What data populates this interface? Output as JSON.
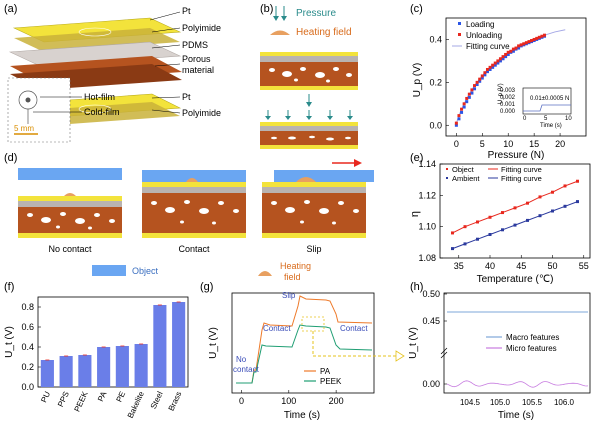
{
  "labels": {
    "a": "(a)",
    "b": "(b)",
    "c": "(c)",
    "d": "(d)",
    "e": "(e)",
    "f": "(f)",
    "g": "(g)",
    "h": "(h)"
  },
  "panel_a": {
    "layers": [
      "Pt",
      "Polyimide",
      "PDMS",
      "Porous material",
      "Pt",
      "Polyimide"
    ],
    "hot_film": "Hot-film",
    "cold_film": "Cold-film",
    "scale": "5 mm"
  },
  "panel_b": {
    "pressure": "Pressure",
    "heating": "Heating field"
  },
  "panel_d": {
    "states": [
      "No contact",
      "Contact",
      "Slip"
    ],
    "legend_object": "Object",
    "legend_heating": "Heating field",
    "colors": {
      "object": "#6aa6f2",
      "brown": "#b5531f",
      "yellow": "#f3e33b",
      "red": "#e8281e"
    }
  },
  "chart_data": [
    {
      "id": "c",
      "type": "scatter",
      "xlabel": "Pressure (N)",
      "ylabel": "U_p (V)",
      "xlim": [
        -2,
        25
      ],
      "ylim": [
        -0.05,
        0.5
      ],
      "xticks": [
        0,
        5,
        10,
        15,
        20
      ],
      "yticks": [
        0.0,
        0.2,
        0.4
      ],
      "series": [
        {
          "name": "Loading",
          "color": "#2b55e6",
          "x": [
            0,
            0.5,
            1,
            1.5,
            2,
            2.5,
            3,
            3.5,
            4,
            4.5,
            5,
            5.5,
            6,
            6.5,
            7,
            7.5,
            8,
            8.5,
            9,
            9.5,
            10,
            10.5,
            11,
            11.5,
            12,
            12.5,
            13,
            13.5,
            14,
            14.5,
            15,
            15.5,
            16,
            16.5,
            17
          ],
          "y": [
            0.0,
            0.03,
            0.06,
            0.085,
            0.11,
            0.13,
            0.15,
            0.17,
            0.19,
            0.205,
            0.22,
            0.235,
            0.25,
            0.26,
            0.27,
            0.28,
            0.29,
            0.3,
            0.31,
            0.32,
            0.33,
            0.34,
            0.345,
            0.355,
            0.36,
            0.37,
            0.375,
            0.38,
            0.385,
            0.39,
            0.395,
            0.4,
            0.405,
            0.41,
            0.415
          ]
        },
        {
          "name": "Unloading",
          "color": "#e8281e",
          "x": [
            0,
            0.5,
            1,
            1.5,
            2,
            2.5,
            3,
            3.5,
            4,
            4.5,
            5,
            5.5,
            6,
            6.5,
            7,
            7.5,
            8,
            8.5,
            9,
            9.5,
            10,
            10.5,
            11,
            11.5,
            12,
            12.5,
            13,
            13.5,
            14,
            14.5,
            15,
            15.5,
            16,
            16.5,
            17
          ],
          "y": [
            0.01,
            0.045,
            0.075,
            0.1,
            0.125,
            0.145,
            0.165,
            0.185,
            0.2,
            0.215,
            0.23,
            0.245,
            0.26,
            0.27,
            0.28,
            0.29,
            0.3,
            0.31,
            0.32,
            0.33,
            0.34,
            0.345,
            0.355,
            0.36,
            0.37,
            0.375,
            0.38,
            0.385,
            0.39,
            0.395,
            0.4,
            0.405,
            0.41,
            0.415,
            0.42
          ]
        },
        {
          "name": "Fitting curve",
          "color": "#a5a8e6"
        }
      ],
      "inset": {
        "xlabel": "Time (s)",
        "ylabel": "U_p (V)",
        "xlim": [
          0,
          10
        ],
        "ylim": [
          0,
          0.003
        ],
        "xticks": [
          0,
          5,
          10
        ],
        "yticks": [
          "0.000",
          "0.001",
          "0.002",
          "0.003"
        ],
        "annotation": "0.01±0.0005 N"
      }
    },
    {
      "id": "e",
      "type": "line",
      "xlabel": "Temperature (℃)",
      "ylabel": "η",
      "xlim": [
        32,
        56
      ],
      "ylim": [
        1.08,
        1.14
      ],
      "xticks": [
        35,
        40,
        45,
        50,
        55
      ],
      "yticks": [
        "1.08",
        "1.10",
        "1.12",
        "1.14"
      ],
      "series": [
        {
          "name": "Object",
          "color": "#e8281e",
          "x": [
            34,
            36,
            38,
            40,
            42,
            44,
            46,
            48,
            50,
            52,
            54
          ],
          "y": [
            1.096,
            1.1,
            1.103,
            1.106,
            1.109,
            1.112,
            1.115,
            1.119,
            1.122,
            1.126,
            1.129
          ]
        },
        {
          "name": "Ambient",
          "color": "#2b3a9e",
          "x": [
            34,
            36,
            38,
            40,
            42,
            44,
            46,
            48,
            50,
            52,
            54
          ],
          "y": [
            1.086,
            1.089,
            1.092,
            1.095,
            1.098,
            1.101,
            1.104,
            1.107,
            1.11,
            1.113,
            1.116
          ]
        }
      ],
      "legend": [
        "Object",
        "Fitting curve",
        "Ambient",
        "Fitting curve"
      ]
    },
    {
      "id": "f",
      "type": "bar",
      "ylabel": "U_t (V)",
      "categories": [
        "PU",
        "PPS",
        "PEEK",
        "PA",
        "PE",
        "Bakelite",
        "Steel",
        "Brass"
      ],
      "values": [
        0.27,
        0.31,
        0.32,
        0.4,
        0.41,
        0.43,
        0.82,
        0.85
      ],
      "ylim": [
        0,
        0.9
      ],
      "yticks": [
        "0.0",
        "0.2",
        "0.4",
        "0.6",
        "0.8"
      ],
      "color": "#6a7ee8"
    },
    {
      "id": "g",
      "type": "line",
      "xlabel": "Time (s)",
      "ylabel": "U_t (V)",
      "xlim": [
        -20,
        280
      ],
      "ylim": [
        -0.08,
        0.85
      ],
      "xticks": [
        0,
        100,
        200
      ],
      "series": [
        {
          "name": "PA",
          "color": "#ee7a2a"
        },
        {
          "name": "PEEK",
          "color": "#1f9e73"
        }
      ],
      "annotations": [
        "Slip",
        "Contact",
        "Contact",
        "No contact"
      ]
    },
    {
      "id": "h",
      "type": "line",
      "xlabel": "Time (s)",
      "ylabel": "U_t (V)",
      "xticks": [
        "104.5",
        "105.0",
        "105.5",
        "106.0"
      ],
      "yticks": [
        "0.00",
        "0.45",
        "0.50"
      ],
      "series": [
        {
          "name": "Macro features",
          "color": "#7ea7d9"
        },
        {
          "name": "Micro features",
          "color": "#c77ce0"
        }
      ]
    }
  ]
}
